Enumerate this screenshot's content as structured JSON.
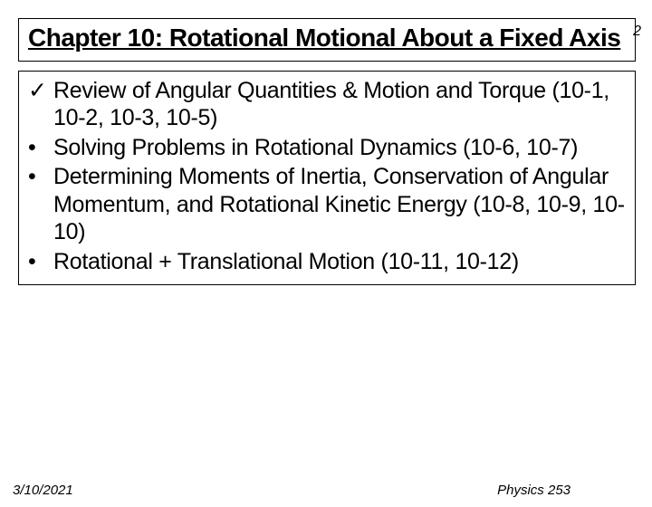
{
  "slide": {
    "number": "2",
    "title": "Chapter 10: Rotational Motional About a Fixed Axis",
    "bullets": [
      {
        "marker": "✓",
        "text": "Review of Angular Quantities & Motion and Torque (10-1, 10-2, 10-3, 10-5)"
      },
      {
        "marker": "•",
        "text": "Solving Problems in Rotational Dynamics (10-6, 10-7)"
      },
      {
        "marker": "•",
        "text": "Determining Moments of Inertia, Conservation of Angular Momentum, and Rotational Kinetic Energy (10-8, 10-9, 10-10)"
      },
      {
        "marker": "•",
        "text": "Rotational + Translational Motion (10-11, 10-12)"
      }
    ],
    "footer": {
      "date": "3/10/2021",
      "course": "Physics 253"
    }
  },
  "styling": {
    "background_color": "#ffffff",
    "border_color": "#000000",
    "text_color": "#000000",
    "title_fontsize": 28,
    "body_fontsize": 25,
    "footer_fontsize": 15,
    "slidenum_fontsize": 16,
    "font_family": "Verdana",
    "title_underline": true,
    "title_bold": true,
    "footer_italic": true,
    "bullet_sections": "(10-1..10-12)"
  }
}
